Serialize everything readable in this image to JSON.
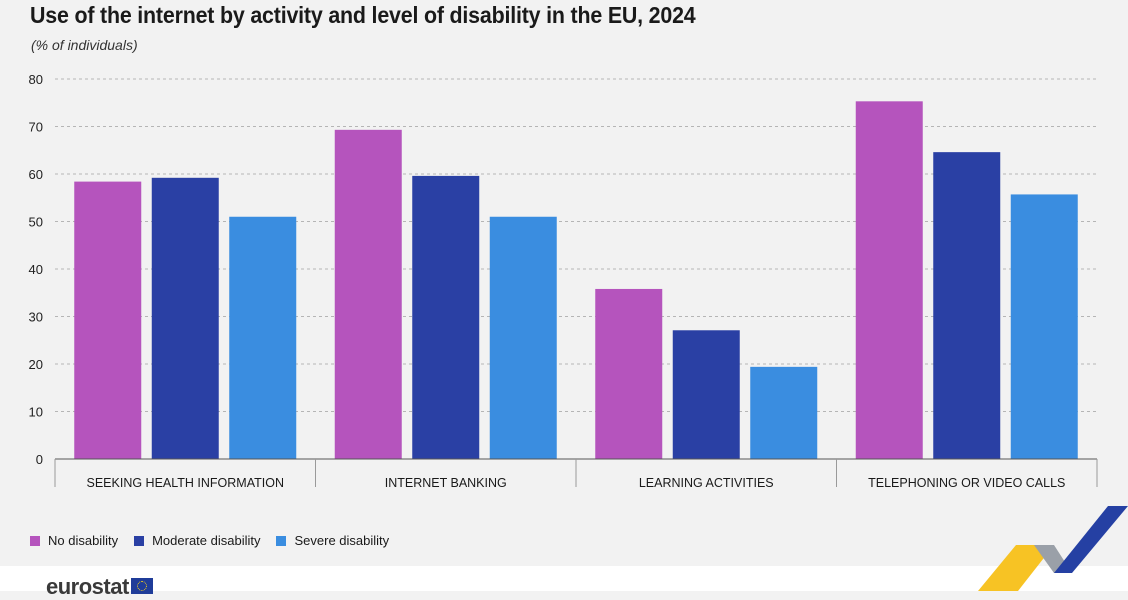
{
  "header": {
    "title": "Use of the internet by activity and level of disability in the EU, 2024",
    "subtitle": "(% of individuals)"
  },
  "chart_data": {
    "type": "bar",
    "title": "Use of the internet by activity and level of disability in the EU, 2024",
    "subtitle": "(% of individuals)",
    "xlabel": "",
    "ylabel": "",
    "ylim": [
      0,
      80
    ],
    "yticks": [
      0,
      10,
      20,
      30,
      40,
      50,
      60,
      70,
      80
    ],
    "grid": true,
    "legend_position": "bottom-left",
    "categories": [
      "SEEKING HEALTH INFORMATION",
      "INTERNET BANKING",
      "LEARNING ACTIVITIES",
      "TELEPHONING OR VIDEO CALLS"
    ],
    "series": [
      {
        "name": "No disability",
        "color": "#b554bd",
        "values": [
          58.4,
          69.3,
          35.8,
          75.3
        ]
      },
      {
        "name": "Moderate disability",
        "color": "#2a40a4",
        "values": [
          59.2,
          59.6,
          27.1,
          64.6
        ]
      },
      {
        "name": "Severe disability",
        "color": "#3a8de0",
        "values": [
          51.0,
          51.0,
          19.4,
          55.7
        ]
      }
    ]
  },
  "legend": {
    "items": [
      {
        "label": "No disability",
        "color": "#b554bd"
      },
      {
        "label": "Moderate disability",
        "color": "#2a40a4"
      },
      {
        "label": "Severe disability",
        "color": "#3a8de0"
      }
    ]
  },
  "footer": {
    "logo_text": "eurostat",
    "logo_icon": "eu-flag-icon"
  }
}
